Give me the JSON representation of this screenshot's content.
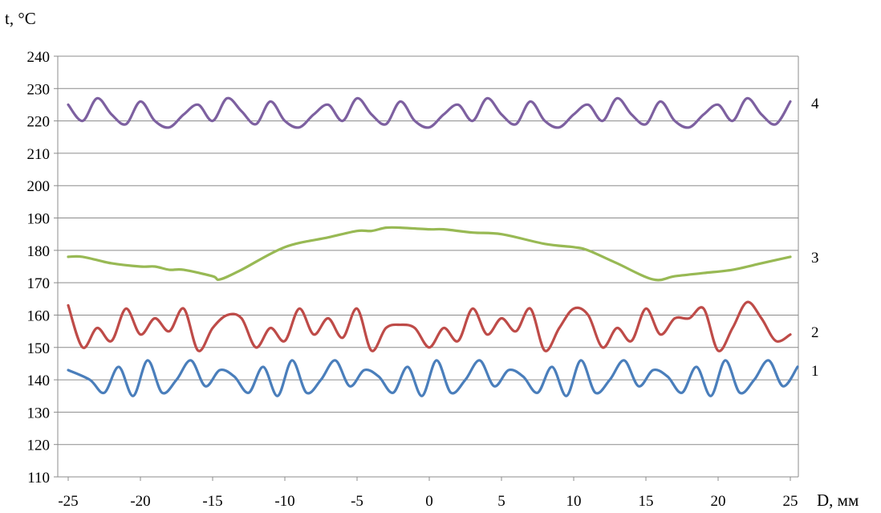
{
  "chart_data": {
    "type": "line",
    "ylabel": "t, °C",
    "xlabel": "D, мм",
    "xlim": [
      -25,
      25
    ],
    "ylim": [
      110,
      240
    ],
    "x_ticks": [
      "-25",
      "-20",
      "-15",
      "-10",
      "-5",
      "0",
      "5",
      "10",
      "15",
      "20",
      "25"
    ],
    "y_ticks": [
      "240",
      "230",
      "220",
      "210",
      "200",
      "190",
      "180",
      "170",
      "160",
      "150",
      "140",
      "130",
      "120",
      "110"
    ],
    "grid": "horizontal",
    "series": [
      {
        "name": "1",
        "color": "#4a7ebb",
        "x": [
          -25,
          -23.5,
          -22.5,
          -21.5,
          -20.5,
          -19.5,
          -18.5,
          -17.5,
          -16.5,
          -15.5,
          -14.5,
          -13.5,
          -12.5,
          -11.5,
          -10.5,
          -9.5,
          -8.5,
          -7.5,
          -6.5,
          -5.5,
          -4.5,
          -3.5,
          -2.5,
          -1.5,
          -0.5,
          0.5,
          1.5,
          2.5,
          3.5,
          4.5,
          5.5,
          6.5,
          7.5,
          8.5,
          9.5,
          10.5,
          11.5,
          12.5,
          13.5,
          14.5,
          15.5,
          16.5,
          17.5,
          18.5,
          19.5,
          20.5,
          21.5,
          22.5,
          23.5,
          24.5,
          25.5
        ],
        "values": [
          143,
          140,
          136,
          144,
          135,
          146,
          136,
          140,
          146,
          138,
          143,
          141,
          136,
          144,
          135,
          146,
          136,
          140,
          146,
          138,
          143,
          141,
          136,
          144,
          135,
          146,
          136,
          140,
          146,
          138,
          143,
          141,
          136,
          144,
          135,
          146,
          136,
          140,
          146,
          138,
          143,
          141,
          136,
          144,
          135,
          146,
          136,
          140,
          146,
          138,
          144
        ]
      },
      {
        "name": "2",
        "color": "#be4b48",
        "x": [
          -25,
          -24,
          -23,
          -22,
          -21,
          -20,
          -19,
          -18,
          -17,
          -16,
          -15,
          -14,
          -13,
          -12,
          -11,
          -10,
          -9,
          -8,
          -7,
          -6,
          -5,
          -4,
          -3,
          -2,
          -1,
          0,
          1,
          2,
          3,
          4,
          5,
          6,
          7,
          8,
          9,
          10,
          11,
          12,
          13,
          14,
          15,
          16,
          17,
          18,
          19,
          20,
          21,
          22,
          23,
          24,
          25
        ],
        "values": [
          163,
          150,
          156,
          152,
          162,
          154,
          159,
          155,
          162,
          149,
          156,
          160,
          159,
          150,
          156,
          152,
          162,
          154,
          159,
          153,
          162,
          149,
          156,
          157,
          156,
          150,
          156,
          152,
          162,
          154,
          159,
          155,
          162,
          149,
          156,
          162,
          160,
          150,
          156,
          152,
          162,
          154,
          159,
          159,
          162,
          149,
          156,
          164,
          159,
          152,
          154
        ]
      },
      {
        "name": "3",
        "color": "#98b954",
        "x": [
          -25,
          -24,
          -22,
          -20,
          -19,
          -18,
          -17,
          -15,
          -14.5,
          -13,
          -10,
          -7,
          -5,
          -4,
          -3,
          -2,
          0,
          1,
          3,
          5,
          8,
          10,
          11,
          13,
          15.5,
          17,
          19,
          21,
          23,
          25
        ],
        "values": [
          178,
          178,
          176,
          175,
          175,
          174,
          174,
          172,
          171,
          174,
          181,
          184,
          186,
          186,
          187,
          187,
          186.5,
          186.5,
          185.5,
          185,
          182,
          181,
          180,
          176,
          171,
          172,
          173,
          174,
          176,
          178
        ]
      },
      {
        "name": "4",
        "color": "#7d60a0",
        "x": [
          -25,
          -24,
          -23,
          -22,
          -21,
          -20,
          -19,
          -18,
          -17,
          -16,
          -15,
          -14,
          -13,
          -12,
          -11,
          -10,
          -9,
          -8,
          -7,
          -6,
          -5,
          -4,
          -3,
          -2,
          -1,
          0,
          1,
          2,
          3,
          4,
          5,
          6,
          7,
          8,
          9,
          10,
          11,
          12,
          13,
          14,
          15,
          16,
          17,
          18,
          19,
          20,
          21,
          22,
          23,
          24,
          25
        ],
        "values": [
          225,
          220,
          227,
          222,
          219,
          226,
          220,
          218,
          222,
          225,
          220,
          227,
          223,
          219,
          226,
          220,
          218,
          222,
          225,
          220,
          227,
          222,
          219,
          226,
          220,
          218,
          222,
          225,
          220,
          227,
          222,
          219,
          226,
          220,
          218,
          222,
          225,
          220,
          227,
          222,
          219,
          226,
          220,
          218,
          222,
          225,
          220,
          227,
          222,
          219,
          226
        ]
      }
    ]
  }
}
